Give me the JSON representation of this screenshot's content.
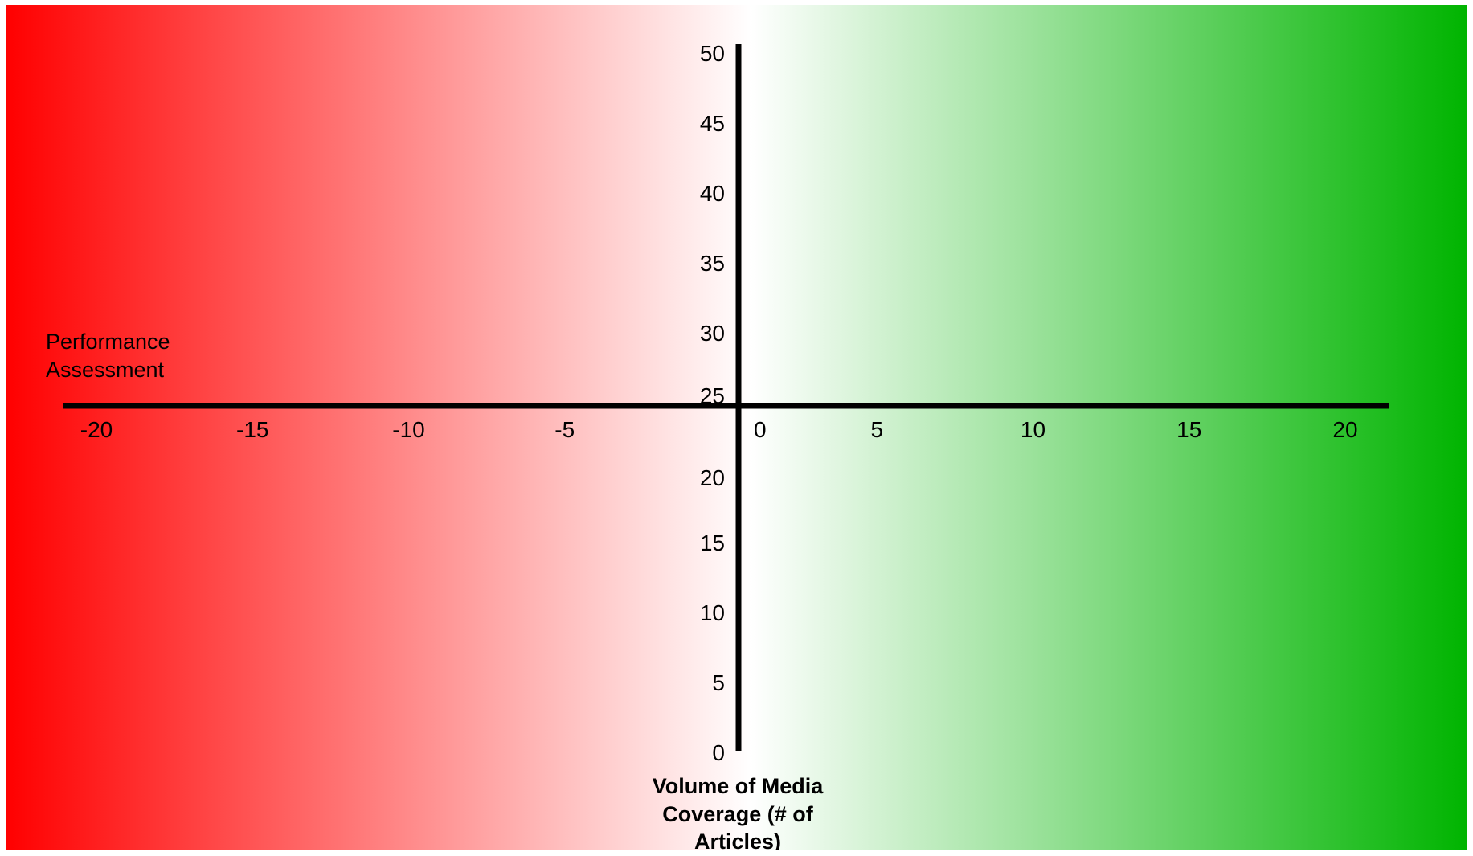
{
  "chart_data": {
    "type": "scatter",
    "title": "",
    "xlabel": "Performance Assessment",
    "ylabel": "Volume of Media Coverage (# of Articles)",
    "xlabel_lines": [
      "Performance",
      "Assessment"
    ],
    "ylabel_lines": [
      "Volume of Media",
      "Coverage (# of",
      "Articles)"
    ],
    "xlim": [
      -20,
      20
    ],
    "ylim": [
      0,
      50
    ],
    "x_ticks": [
      -20,
      -15,
      -10,
      -5,
      0,
      5,
      10,
      15,
      20
    ],
    "y_ticks": [
      0,
      5,
      10,
      15,
      20,
      25,
      30,
      35,
      40,
      45,
      50
    ],
    "series": [],
    "grid": false,
    "legend": "none",
    "background_gradient": [
      "#ff0000",
      "#ffffff",
      "#00b400"
    ],
    "axis_color": "#000000"
  }
}
